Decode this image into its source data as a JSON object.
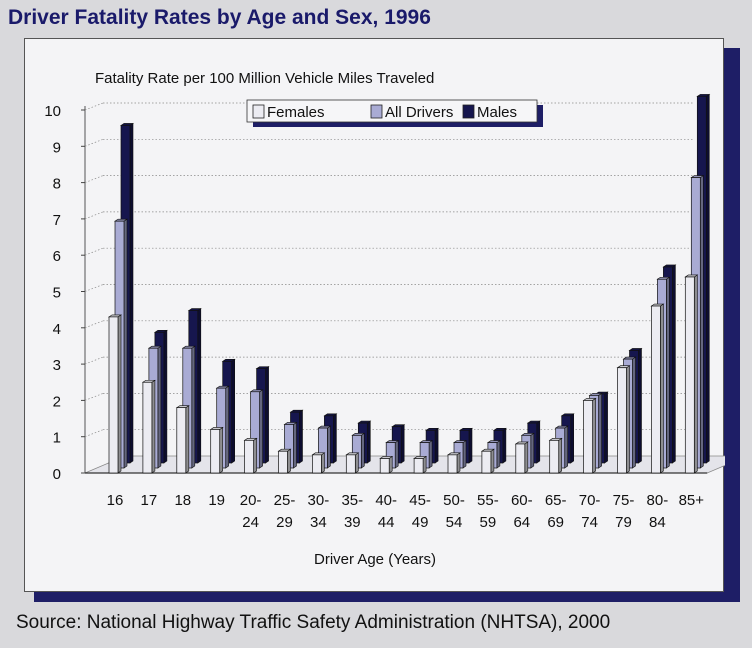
{
  "title": "Driver Fatality Rates by Age and Sex, 1996",
  "source": "Source: National Highway Traffic Safety Administration (NHTSA), 2000",
  "colors": {
    "females": "#ececf2",
    "all_drivers": "#a9abd4",
    "males": "#16164e",
    "frame_shadow": "#1e1e66",
    "title": "#1a1a6a"
  },
  "chart_data": {
    "type": "bar",
    "title": "Driver Fatality Rates by Age and Sex, 1996",
    "ylabel": "Fatality Rate per 100 Million Vehicle Miles Traveled",
    "xlabel": "Driver Age (Years)",
    "ylim": [
      0,
      10
    ],
    "yticks": [
      "0",
      "1",
      "2",
      "3",
      "4",
      "5",
      "6",
      "7",
      "8",
      "9",
      "10"
    ],
    "grid": true,
    "legend_position": "top-center",
    "categories": [
      [
        "16"
      ],
      [
        "17"
      ],
      [
        "18"
      ],
      [
        "19"
      ],
      [
        "20-",
        "24"
      ],
      [
        "25-",
        "29"
      ],
      [
        "30-",
        "34"
      ],
      [
        "35-",
        "39"
      ],
      [
        "40-",
        "44"
      ],
      [
        "45-",
        "49"
      ],
      [
        "50-",
        "54"
      ],
      [
        "55-",
        "59"
      ],
      [
        "60-",
        "64"
      ],
      [
        "65-",
        "69"
      ],
      [
        "70-",
        "74"
      ],
      [
        "75-",
        "79"
      ],
      [
        "80-",
        "84"
      ],
      [
        "85+"
      ]
    ],
    "series": [
      {
        "name": "Females",
        "values": [
          4.3,
          2.5,
          1.8,
          1.2,
          0.9,
          0.6,
          0.5,
          0.5,
          0.4,
          0.4,
          0.5,
          0.6,
          0.8,
          0.9,
          2.0,
          2.9,
          4.6,
          5.4
        ]
      },
      {
        "name": "All Drivers",
        "values": [
          6.8,
          3.3,
          3.3,
          2.2,
          2.1,
          1.2,
          1.1,
          0.9,
          0.7,
          0.7,
          0.7,
          0.7,
          0.9,
          1.1,
          2.0,
          3.0,
          5.2,
          8.0
        ]
      },
      {
        "name": "Males",
        "values": [
          9.3,
          3.6,
          4.2,
          2.8,
          2.6,
          1.4,
          1.3,
          1.1,
          1.0,
          0.9,
          0.9,
          0.9,
          1.1,
          1.3,
          1.9,
          3.1,
          5.4,
          10.1
        ]
      }
    ]
  }
}
